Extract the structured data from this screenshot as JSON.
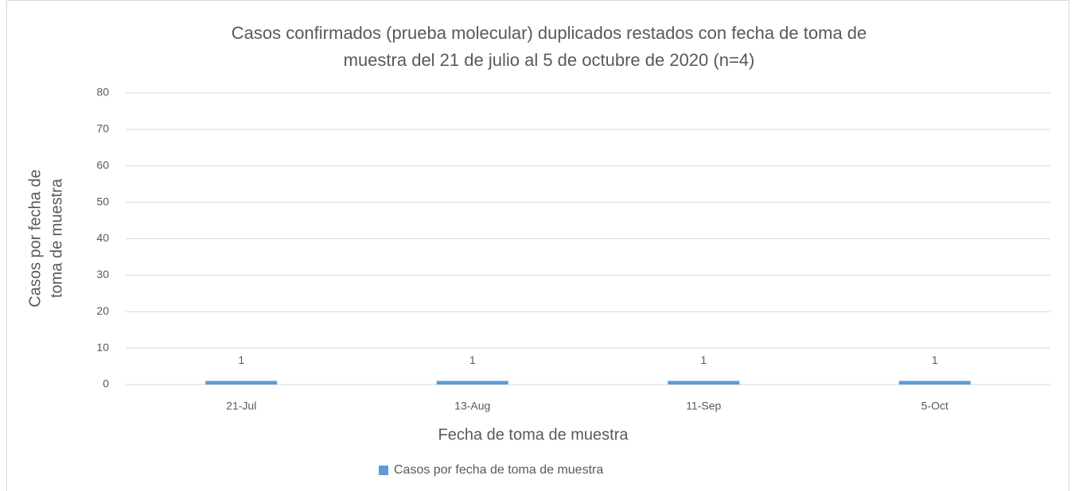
{
  "chart_data": {
    "type": "bar",
    "title": [
      "Casos confirmados (prueba molecular) duplicados restados con fecha de toma de",
      "muestra del 21 de julio al 5 de octubre de 2020 (n=4)"
    ],
    "x_label": "Fecha de toma de muestra",
    "y_label": [
      "Casos por fecha de",
      "toma de muestra"
    ],
    "categories": [
      "21-Jul",
      "13-Aug",
      "11-Sep",
      "5-Oct"
    ],
    "series": [
      {
        "name": "Casos por fecha de toma de muestra",
        "color": "#5b9bd5",
        "values": [
          1,
          1,
          1,
          1
        ]
      }
    ],
    "ylim": [
      0,
      80
    ],
    "yticks": [
      0,
      10,
      20,
      30,
      40,
      50,
      60,
      70,
      80
    ],
    "grid": true,
    "data_labels": true,
    "legend": "bottom"
  }
}
